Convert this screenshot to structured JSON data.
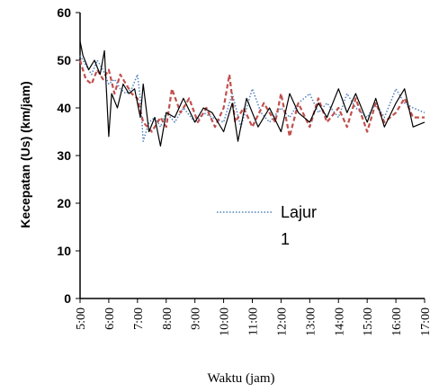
{
  "chart_data": {
    "type": "line",
    "xlabel": "Waktu (jam)",
    "ylabel": "Kecepatan (Us) (km/jam)",
    "ylim": [
      0,
      60
    ],
    "yticks": [
      0,
      10,
      20,
      30,
      40,
      50,
      60
    ],
    "x_categories": [
      "5:00",
      "6:00",
      "7:00",
      "8:00",
      "9:00",
      "10:00",
      "11:00",
      "12:00",
      "13:00",
      "14:00",
      "15:00",
      "16:00",
      "17:00"
    ],
    "x_hour_range": [
      5,
      17
    ],
    "grid": false,
    "legend": {
      "position": "center",
      "line1": "Lajur",
      "line2": "1"
    },
    "series": [
      {
        "name": "Lajur 1",
        "color": "#4f81bd",
        "style": "dotted",
        "points": [
          [
            5.0,
            51
          ],
          [
            5.2,
            49
          ],
          [
            5.4,
            47
          ],
          [
            5.6,
            50
          ],
          [
            5.8,
            48
          ],
          [
            6.0,
            45
          ],
          [
            6.2,
            46
          ],
          [
            6.4,
            44
          ],
          [
            6.6,
            43
          ],
          [
            6.8,
            44
          ],
          [
            7.0,
            47
          ],
          [
            7.1,
            42
          ],
          [
            7.2,
            33
          ],
          [
            7.4,
            37
          ],
          [
            7.6,
            38
          ],
          [
            7.8,
            36
          ],
          [
            8.0,
            39
          ],
          [
            8.3,
            37
          ],
          [
            8.6,
            40
          ],
          [
            9.0,
            37
          ],
          [
            9.3,
            39
          ],
          [
            9.6,
            38
          ],
          [
            10.0,
            37
          ],
          [
            10.3,
            43
          ],
          [
            10.6,
            36
          ],
          [
            11.0,
            44
          ],
          [
            11.3,
            39
          ],
          [
            11.6,
            37
          ],
          [
            12.0,
            40
          ],
          [
            12.3,
            38
          ],
          [
            12.6,
            41
          ],
          [
            13.0,
            43
          ],
          [
            13.3,
            39
          ],
          [
            13.6,
            41
          ],
          [
            14.0,
            38
          ],
          [
            14.3,
            43
          ],
          [
            14.6,
            40
          ],
          [
            15.0,
            38
          ],
          [
            15.3,
            41
          ],
          [
            15.6,
            38
          ],
          [
            16.0,
            44
          ],
          [
            16.3,
            41
          ],
          [
            16.6,
            40
          ],
          [
            17.0,
            39
          ]
        ]
      },
      {
        "name": "",
        "color": "#c0504d",
        "style": "dashed",
        "points": [
          [
            5.0,
            50
          ],
          [
            5.2,
            46
          ],
          [
            5.4,
            45
          ],
          [
            5.6,
            48
          ],
          [
            5.8,
            46
          ],
          [
            6.0,
            48
          ],
          [
            6.2,
            43
          ],
          [
            6.4,
            47
          ],
          [
            6.6,
            45
          ],
          [
            6.8,
            43
          ],
          [
            7.0,
            42
          ],
          [
            7.2,
            37
          ],
          [
            7.5,
            35
          ],
          [
            7.8,
            38
          ],
          [
            8.0,
            36
          ],
          [
            8.2,
            44
          ],
          [
            8.5,
            39
          ],
          [
            8.8,
            42
          ],
          [
            9.1,
            37
          ],
          [
            9.4,
            40
          ],
          [
            9.7,
            36
          ],
          [
            10.0,
            40
          ],
          [
            10.2,
            47
          ],
          [
            10.4,
            37
          ],
          [
            10.7,
            40
          ],
          [
            11.0,
            36
          ],
          [
            11.4,
            41
          ],
          [
            11.8,
            37
          ],
          [
            12.0,
            43
          ],
          [
            12.3,
            34
          ],
          [
            12.6,
            41
          ],
          [
            13.0,
            36
          ],
          [
            13.3,
            42
          ],
          [
            13.6,
            37
          ],
          [
            14.0,
            40
          ],
          [
            14.3,
            36
          ],
          [
            14.6,
            42
          ],
          [
            15.0,
            35
          ],
          [
            15.3,
            41
          ],
          [
            15.6,
            37
          ],
          [
            16.0,
            39
          ],
          [
            16.3,
            42
          ],
          [
            16.6,
            38
          ],
          [
            17.0,
            38
          ]
        ]
      },
      {
        "name": "",
        "color": "#000000",
        "style": "solid",
        "points": [
          [
            5.0,
            54
          ],
          [
            5.1,
            51
          ],
          [
            5.3,
            48
          ],
          [
            5.5,
            50
          ],
          [
            5.7,
            47
          ],
          [
            5.85,
            52
          ],
          [
            6.0,
            34
          ],
          [
            6.1,
            43
          ],
          [
            6.3,
            40
          ],
          [
            6.5,
            45
          ],
          [
            6.7,
            43
          ],
          [
            6.9,
            44
          ],
          [
            7.1,
            38
          ],
          [
            7.2,
            45
          ],
          [
            7.4,
            35
          ],
          [
            7.6,
            38
          ],
          [
            7.8,
            32
          ],
          [
            8.0,
            39
          ],
          [
            8.3,
            38
          ],
          [
            8.6,
            42
          ],
          [
            9.0,
            37
          ],
          [
            9.3,
            40
          ],
          [
            9.6,
            39
          ],
          [
            10.0,
            35
          ],
          [
            10.3,
            41
          ],
          [
            10.5,
            33
          ],
          [
            10.8,
            42
          ],
          [
            11.2,
            36
          ],
          [
            11.6,
            40
          ],
          [
            12.0,
            35
          ],
          [
            12.3,
            43
          ],
          [
            12.6,
            39
          ],
          [
            13.0,
            37
          ],
          [
            13.3,
            41
          ],
          [
            13.6,
            38
          ],
          [
            14.0,
            44
          ],
          [
            14.3,
            39
          ],
          [
            14.6,
            43
          ],
          [
            15.0,
            37
          ],
          [
            15.3,
            42
          ],
          [
            15.6,
            36
          ],
          [
            16.0,
            41
          ],
          [
            16.3,
            44
          ],
          [
            16.6,
            36
          ],
          [
            17.0,
            37
          ]
        ]
      }
    ]
  }
}
